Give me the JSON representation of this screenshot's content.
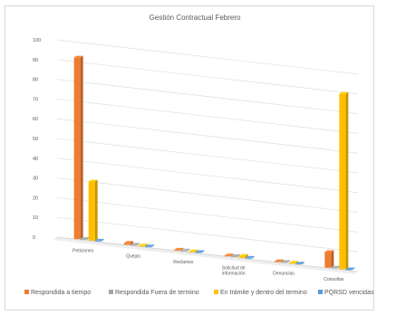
{
  "chart_data": {
    "type": "bar",
    "title": "Gestión Contractual Febrero",
    "categories": [
      "Peticiones",
      "Quejas",
      "Reclamos",
      "Solicitud de información",
      "Denuncias",
      "Consultas"
    ],
    "category_lines": [
      [
        "Peticiones"
      ],
      [
        "Quejas"
      ],
      [
        "Reclamos"
      ],
      [
        "Solicitud de",
        "información"
      ],
      [
        "Denuncias"
      ],
      [
        "Consultas"
      ]
    ],
    "series": [
      {
        "name": "Respondida a tiempo",
        "color": "#ED7D31",
        "values": [
          92,
          1,
          0,
          0,
          0,
          8
        ]
      },
      {
        "name": "Respondida Fuera de termino",
        "color": "#A5A5A5",
        "values": [
          0,
          0,
          0,
          0,
          0,
          0
        ]
      },
      {
        "name": "En trámite y dentro del termino",
        "color": "#FFC000",
        "values": [
          30,
          0,
          0,
          1,
          0,
          89
        ]
      },
      {
        "name": "PQRSD vencidas",
        "color": "#5B9BD5",
        "values": [
          0,
          0,
          0,
          0,
          0,
          0
        ]
      }
    ],
    "ylim": [
      0,
      100
    ],
    "yticks": [
      0,
      10,
      20,
      30,
      40,
      50,
      60,
      70,
      80,
      90,
      100
    ],
    "grid": true,
    "legend": "bottom"
  }
}
